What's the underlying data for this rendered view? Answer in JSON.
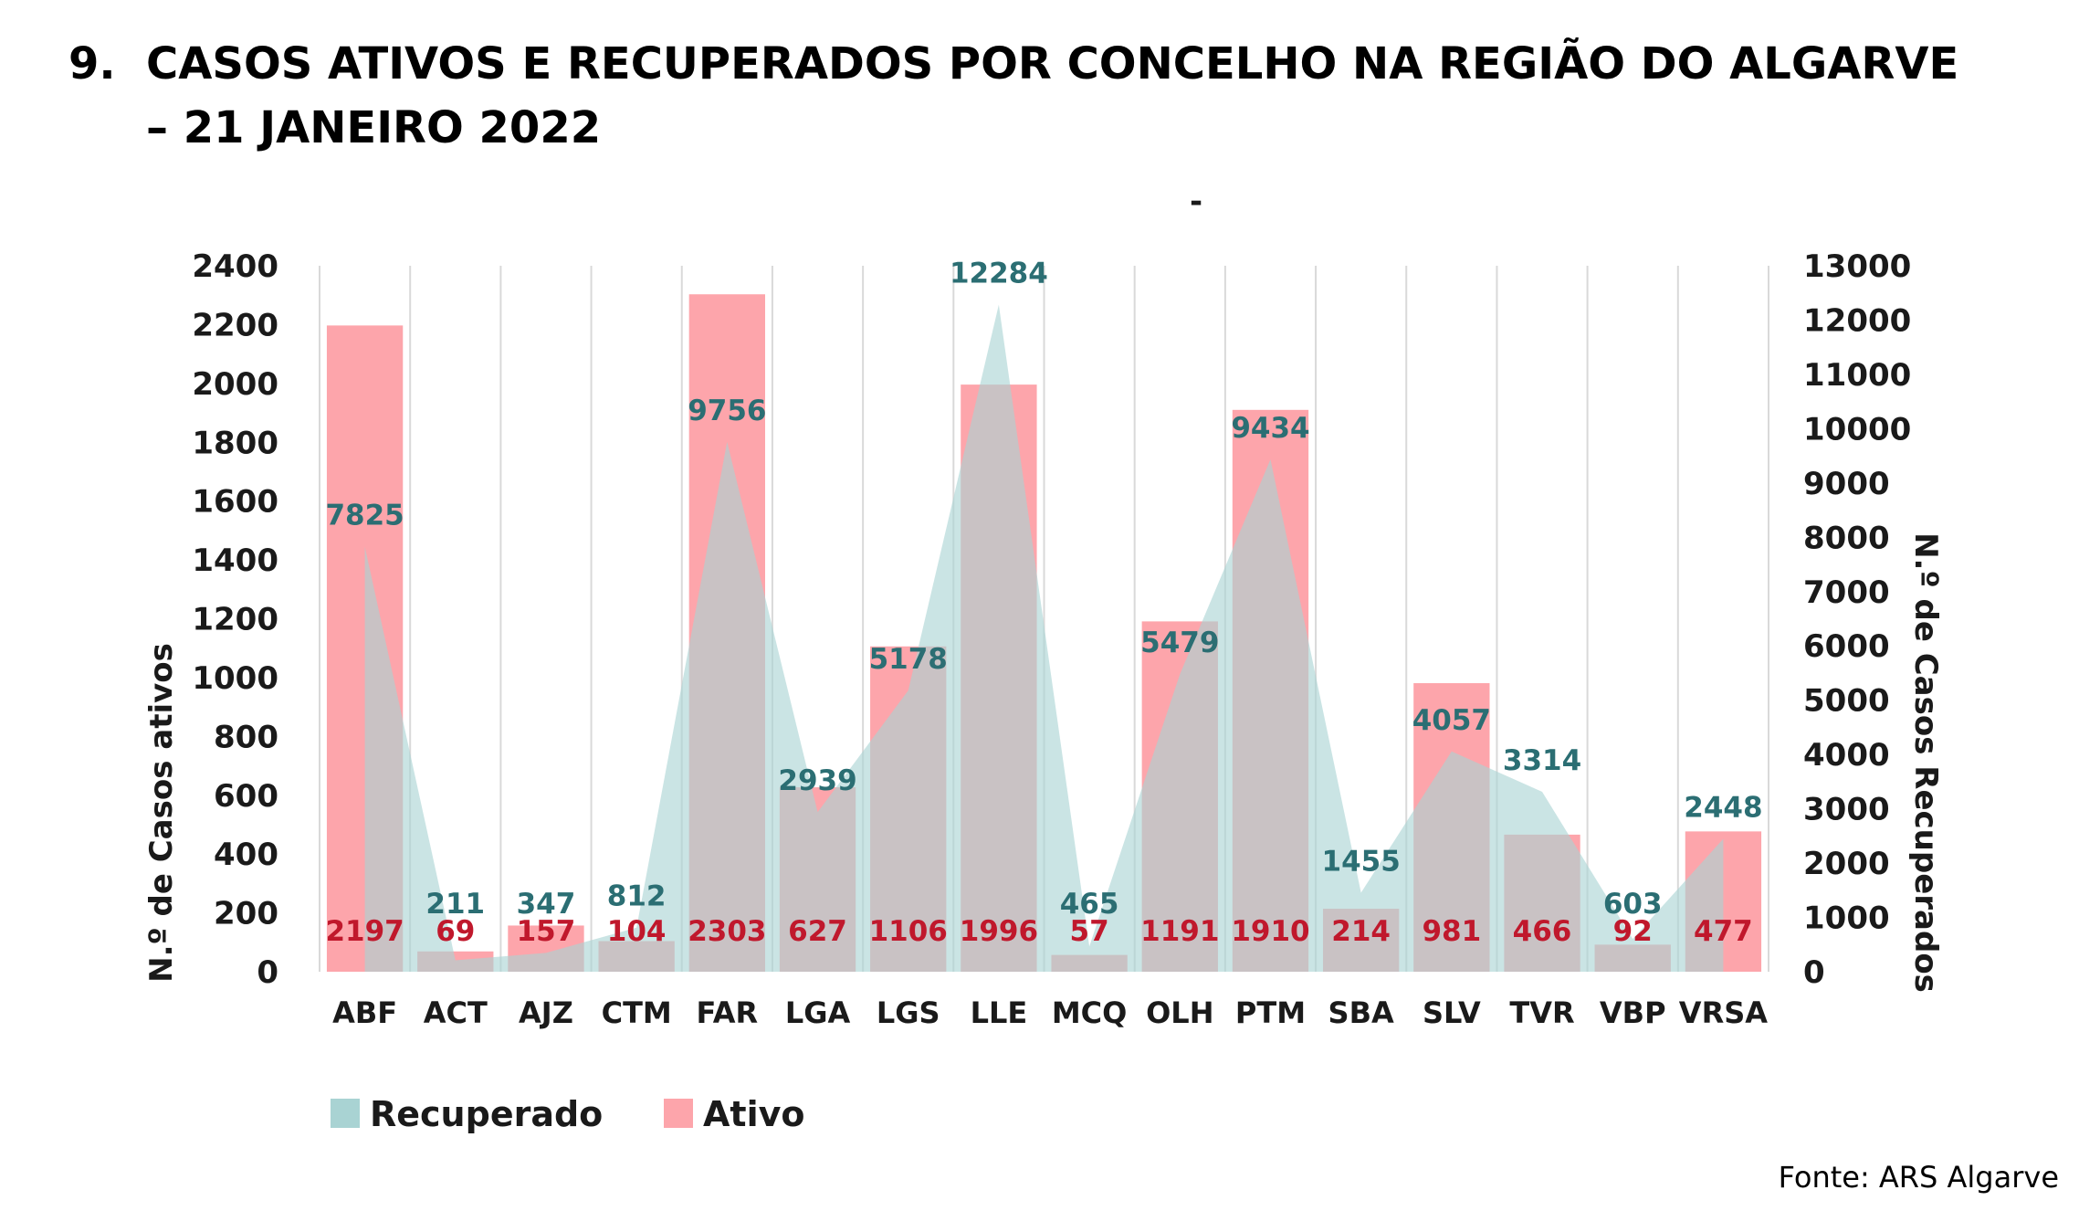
{
  "title": {
    "number": "9.",
    "line1": "CASOS ATIVOS E RECUPERADOS POR CONCELHO NA REGIÃO DO ALGARVE",
    "line2": "– 21 JANEIRO 2022"
  },
  "source": "Fonte: ARS Algarve",
  "chart_data": {
    "type": "bar",
    "title": "",
    "categories": [
      "ABF",
      "ACT",
      "AJZ",
      "CTM",
      "FAR",
      "LGA",
      "LGS",
      "LLE",
      "MCQ",
      "OLH",
      "PTM",
      "SBA",
      "SLV",
      "TVR",
      "VBP",
      "VRSA"
    ],
    "series": [
      {
        "name": "Ativo",
        "type": "bar",
        "axis": "left",
        "values": [
          2197,
          69,
          157,
          104,
          2303,
          627,
          1106,
          1996,
          57,
          1191,
          1910,
          214,
          981,
          466,
          92,
          477
        ]
      },
      {
        "name": "Recuperado",
        "type": "area",
        "axis": "right",
        "values": [
          7825,
          211,
          347,
          812,
          9756,
          2939,
          5178,
          12284,
          465,
          5479,
          9434,
          1455,
          4057,
          3314,
          603,
          2448
        ]
      }
    ],
    "y_left": {
      "label": "N.º de Casos ativos",
      "ylim": [
        0,
        2400
      ],
      "ticks": [
        0,
        200,
        400,
        600,
        800,
        1000,
        1200,
        1400,
        1600,
        1800,
        2000,
        2200,
        2400
      ]
    },
    "y_right": {
      "label": "N.º de Casos Recuperados",
      "ylim": [
        0,
        13000
      ],
      "ticks": [
        0,
        1000,
        2000,
        3000,
        4000,
        5000,
        6000,
        7000,
        8000,
        9000,
        10000,
        11000,
        12000,
        13000
      ]
    },
    "colors": {
      "Ativo": "#fda5ab",
      "Recuperado": "#a9d3d3"
    },
    "grid": "vertical",
    "legend": "bottom-left",
    "stray_mark": "-"
  }
}
